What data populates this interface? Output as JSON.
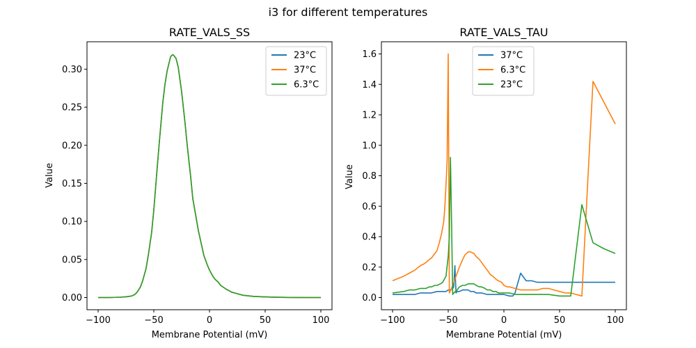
{
  "suptitle": "i3 for different temperatures",
  "chart_data": [
    {
      "type": "line",
      "title": "RATE_VALS_SS",
      "xlabel": "Membrane Potential (mV)",
      "ylabel": "Value",
      "xlim": [
        -110,
        110
      ],
      "ylim": [
        -0.016,
        0.336
      ],
      "xticks": [
        -100,
        -50,
        0,
        50,
        100
      ],
      "xtick_labels": [
        "−100",
        "−50",
        "0",
        "50",
        "100"
      ],
      "yticks": [
        0.0,
        0.05,
        0.1,
        0.15,
        0.2,
        0.25,
        0.3
      ],
      "ytick_labels": [
        "0.00",
        "0.05",
        "0.10",
        "0.15",
        "0.20",
        "0.25",
        "0.30"
      ],
      "grid": false,
      "legend_position": "top-right",
      "series": [
        {
          "name": "23°C",
          "color": "#1f77b4",
          "x": [
            -100,
            -90,
            -80,
            -75,
            -70,
            -67,
            -65,
            -62,
            -60,
            -57,
            -55,
            -52,
            -50,
            -47,
            -45,
            -42,
            -40,
            -38,
            -36,
            -35,
            -34,
            -33,
            -32,
            -30,
            -28,
            -25,
            -22,
            -20,
            -17,
            -15,
            -12,
            -10,
            -7,
            -5,
            -2,
            0,
            3,
            5,
            8,
            10,
            15,
            20,
            25,
            30,
            40,
            50,
            60,
            70,
            80,
            90,
            100
          ],
          "y": [
            0.0,
            0.0,
            0.0005,
            0.001,
            0.002,
            0.004,
            0.007,
            0.014,
            0.022,
            0.038,
            0.055,
            0.085,
            0.115,
            0.17,
            0.205,
            0.255,
            0.28,
            0.298,
            0.31,
            0.316,
            0.318,
            0.319,
            0.318,
            0.314,
            0.302,
            0.27,
            0.23,
            0.2,
            0.16,
            0.13,
            0.105,
            0.088,
            0.068,
            0.055,
            0.043,
            0.036,
            0.028,
            0.024,
            0.02,
            0.016,
            0.011,
            0.007,
            0.005,
            0.003,
            0.0015,
            0.0008,
            0.0004,
            0.0002,
            0.0001,
            0.0,
            0.0
          ]
        },
        {
          "name": "37°C",
          "color": "#ff7f0e",
          "x": [
            -100,
            -90,
            -80,
            -75,
            -70,
            -67,
            -65,
            -62,
            -60,
            -57,
            -55,
            -52,
            -50,
            -47,
            -45,
            -42,
            -40,
            -38,
            -36,
            -35,
            -34,
            -33,
            -32,
            -30,
            -28,
            -25,
            -22,
            -20,
            -17,
            -15,
            -12,
            -10,
            -7,
            -5,
            -2,
            0,
            3,
            5,
            8,
            10,
            15,
            20,
            25,
            30,
            40,
            50,
            60,
            70,
            80,
            90,
            100
          ],
          "y": [
            0.0,
            0.0,
            0.0005,
            0.001,
            0.002,
            0.004,
            0.007,
            0.014,
            0.022,
            0.038,
            0.055,
            0.085,
            0.115,
            0.17,
            0.205,
            0.255,
            0.28,
            0.298,
            0.31,
            0.316,
            0.318,
            0.319,
            0.318,
            0.314,
            0.302,
            0.27,
            0.23,
            0.2,
            0.16,
            0.13,
            0.105,
            0.088,
            0.068,
            0.055,
            0.043,
            0.036,
            0.028,
            0.024,
            0.02,
            0.016,
            0.011,
            0.007,
            0.005,
            0.003,
            0.0015,
            0.0008,
            0.0004,
            0.0002,
            0.0001,
            0.0,
            0.0
          ]
        },
        {
          "name": "6.3°C",
          "color": "#2ca02c",
          "x": [
            -100,
            -90,
            -80,
            -75,
            -70,
            -67,
            -65,
            -62,
            -60,
            -57,
            -55,
            -52,
            -50,
            -47,
            -45,
            -42,
            -40,
            -38,
            -36,
            -35,
            -34,
            -33,
            -32,
            -30,
            -28,
            -25,
            -22,
            -20,
            -17,
            -15,
            -12,
            -10,
            -7,
            -5,
            -2,
            0,
            3,
            5,
            8,
            10,
            15,
            20,
            25,
            30,
            40,
            50,
            60,
            70,
            80,
            90,
            100
          ],
          "y": [
            0.0,
            0.0,
            0.0005,
            0.001,
            0.002,
            0.004,
            0.007,
            0.014,
            0.022,
            0.038,
            0.055,
            0.085,
            0.115,
            0.17,
            0.205,
            0.255,
            0.28,
            0.298,
            0.31,
            0.316,
            0.318,
            0.319,
            0.318,
            0.314,
            0.302,
            0.27,
            0.23,
            0.2,
            0.16,
            0.13,
            0.105,
            0.088,
            0.068,
            0.055,
            0.043,
            0.036,
            0.028,
            0.024,
            0.02,
            0.016,
            0.011,
            0.007,
            0.005,
            0.003,
            0.0015,
            0.0008,
            0.0004,
            0.0002,
            0.0001,
            0.0,
            0.0
          ]
        }
      ]
    },
    {
      "type": "line",
      "title": "RATE_VALS_TAU",
      "xlabel": "Membrane Potential (mV)",
      "ylabel": "Value",
      "xlim": [
        -110,
        110
      ],
      "ylim": [
        -0.08,
        1.68
      ],
      "xticks": [
        -100,
        -50,
        0,
        50,
        100
      ],
      "xtick_labels": [
        "−100",
        "−50",
        "0",
        "50",
        "100"
      ],
      "yticks": [
        0.0,
        0.2,
        0.4,
        0.6,
        0.8,
        1.0,
        1.2,
        1.4,
        1.6
      ],
      "ytick_labels": [
        "0.0",
        "0.2",
        "0.4",
        "0.6",
        "0.8",
        "1.0",
        "1.2",
        "1.4",
        "1.6"
      ],
      "grid": false,
      "legend_position": "top-center",
      "series": [
        {
          "name": "37°C",
          "color": "#1f77b4",
          "x": [
            -100,
            -90,
            -80,
            -75,
            -70,
            -65,
            -60,
            -55,
            -52,
            -50,
            -48,
            -46,
            -45,
            -44,
            -43,
            -42,
            -40,
            -37,
            -35,
            -32,
            -30,
            -27,
            -25,
            -20,
            -15,
            -10,
            -5,
            0,
            5,
            8,
            10,
            15,
            20,
            25,
            30,
            35,
            40,
            50,
            60,
            70,
            80,
            90,
            100
          ],
          "y": [
            0.02,
            0.02,
            0.02,
            0.03,
            0.03,
            0.03,
            0.04,
            0.04,
            0.04,
            0.05,
            0.05,
            0.06,
            0.07,
            0.21,
            0.03,
            0.04,
            0.04,
            0.05,
            0.05,
            0.05,
            0.04,
            0.04,
            0.03,
            0.03,
            0.02,
            0.02,
            0.02,
            0.02,
            0.01,
            0.01,
            0.03,
            0.16,
            0.11,
            0.11,
            0.1,
            0.1,
            0.1,
            0.1,
            0.1,
            0.1,
            0.1,
            0.1,
            0.1
          ]
        },
        {
          "name": "6.3°C",
          "color": "#ff7f0e",
          "x": [
            -100,
            -90,
            -85,
            -80,
            -75,
            -72,
            -70,
            -67,
            -65,
            -62,
            -60,
            -58,
            -56,
            -55,
            -54,
            -53,
            -52,
            -51,
            -50,
            -49,
            -47,
            -45,
            -42,
            -40,
            -37,
            -35,
            -32,
            -30,
            -27,
            -25,
            -22,
            -20,
            -17,
            -15,
            -12,
            -10,
            -7,
            -5,
            -2,
            0,
            3,
            5,
            10,
            15,
            20,
            25,
            30,
            35,
            40,
            45,
            50,
            55,
            60,
            65,
            70,
            75,
            80,
            90,
            100
          ],
          "y": [
            0.11,
            0.14,
            0.16,
            0.18,
            0.21,
            0.22,
            0.23,
            0.25,
            0.26,
            0.29,
            0.31,
            0.36,
            0.42,
            0.46,
            0.5,
            0.6,
            0.74,
            0.9,
            1.6,
            0.03,
            0.06,
            0.1,
            0.16,
            0.2,
            0.25,
            0.28,
            0.3,
            0.3,
            0.29,
            0.27,
            0.25,
            0.23,
            0.2,
            0.18,
            0.15,
            0.14,
            0.12,
            0.11,
            0.1,
            0.08,
            0.07,
            0.07,
            0.06,
            0.05,
            0.05,
            0.05,
            0.05,
            0.06,
            0.06,
            0.05,
            0.04,
            0.03,
            0.03,
            0.02,
            0.01,
            0.72,
            1.42,
            1.28,
            1.14
          ]
        },
        {
          "name": "23°C",
          "color": "#2ca02c",
          "x": [
            -100,
            -90,
            -85,
            -80,
            -75,
            -72,
            -70,
            -67,
            -65,
            -62,
            -60,
            -57,
            -55,
            -52,
            -50,
            -49,
            -48,
            -47,
            -46,
            -45,
            -42,
            -40,
            -37,
            -35,
            -32,
            -30,
            -27,
            -25,
            -22,
            -20,
            -17,
            -15,
            -12,
            -10,
            -7,
            -5,
            -2,
            0,
            3,
            5,
            10,
            15,
            20,
            30,
            40,
            50,
            55,
            60,
            70,
            80,
            90,
            100
          ],
          "y": [
            0.03,
            0.04,
            0.05,
            0.05,
            0.06,
            0.06,
            0.06,
            0.07,
            0.07,
            0.08,
            0.08,
            0.09,
            0.1,
            0.14,
            0.27,
            0.4,
            0.92,
            0.5,
            0.02,
            0.03,
            0.05,
            0.07,
            0.08,
            0.08,
            0.09,
            0.09,
            0.09,
            0.08,
            0.07,
            0.07,
            0.06,
            0.05,
            0.05,
            0.04,
            0.04,
            0.03,
            0.03,
            0.03,
            0.03,
            0.03,
            0.02,
            0.02,
            0.02,
            0.02,
            0.02,
            0.01,
            0.01,
            0.01,
            0.61,
            0.36,
            0.32,
            0.29
          ]
        }
      ]
    }
  ]
}
